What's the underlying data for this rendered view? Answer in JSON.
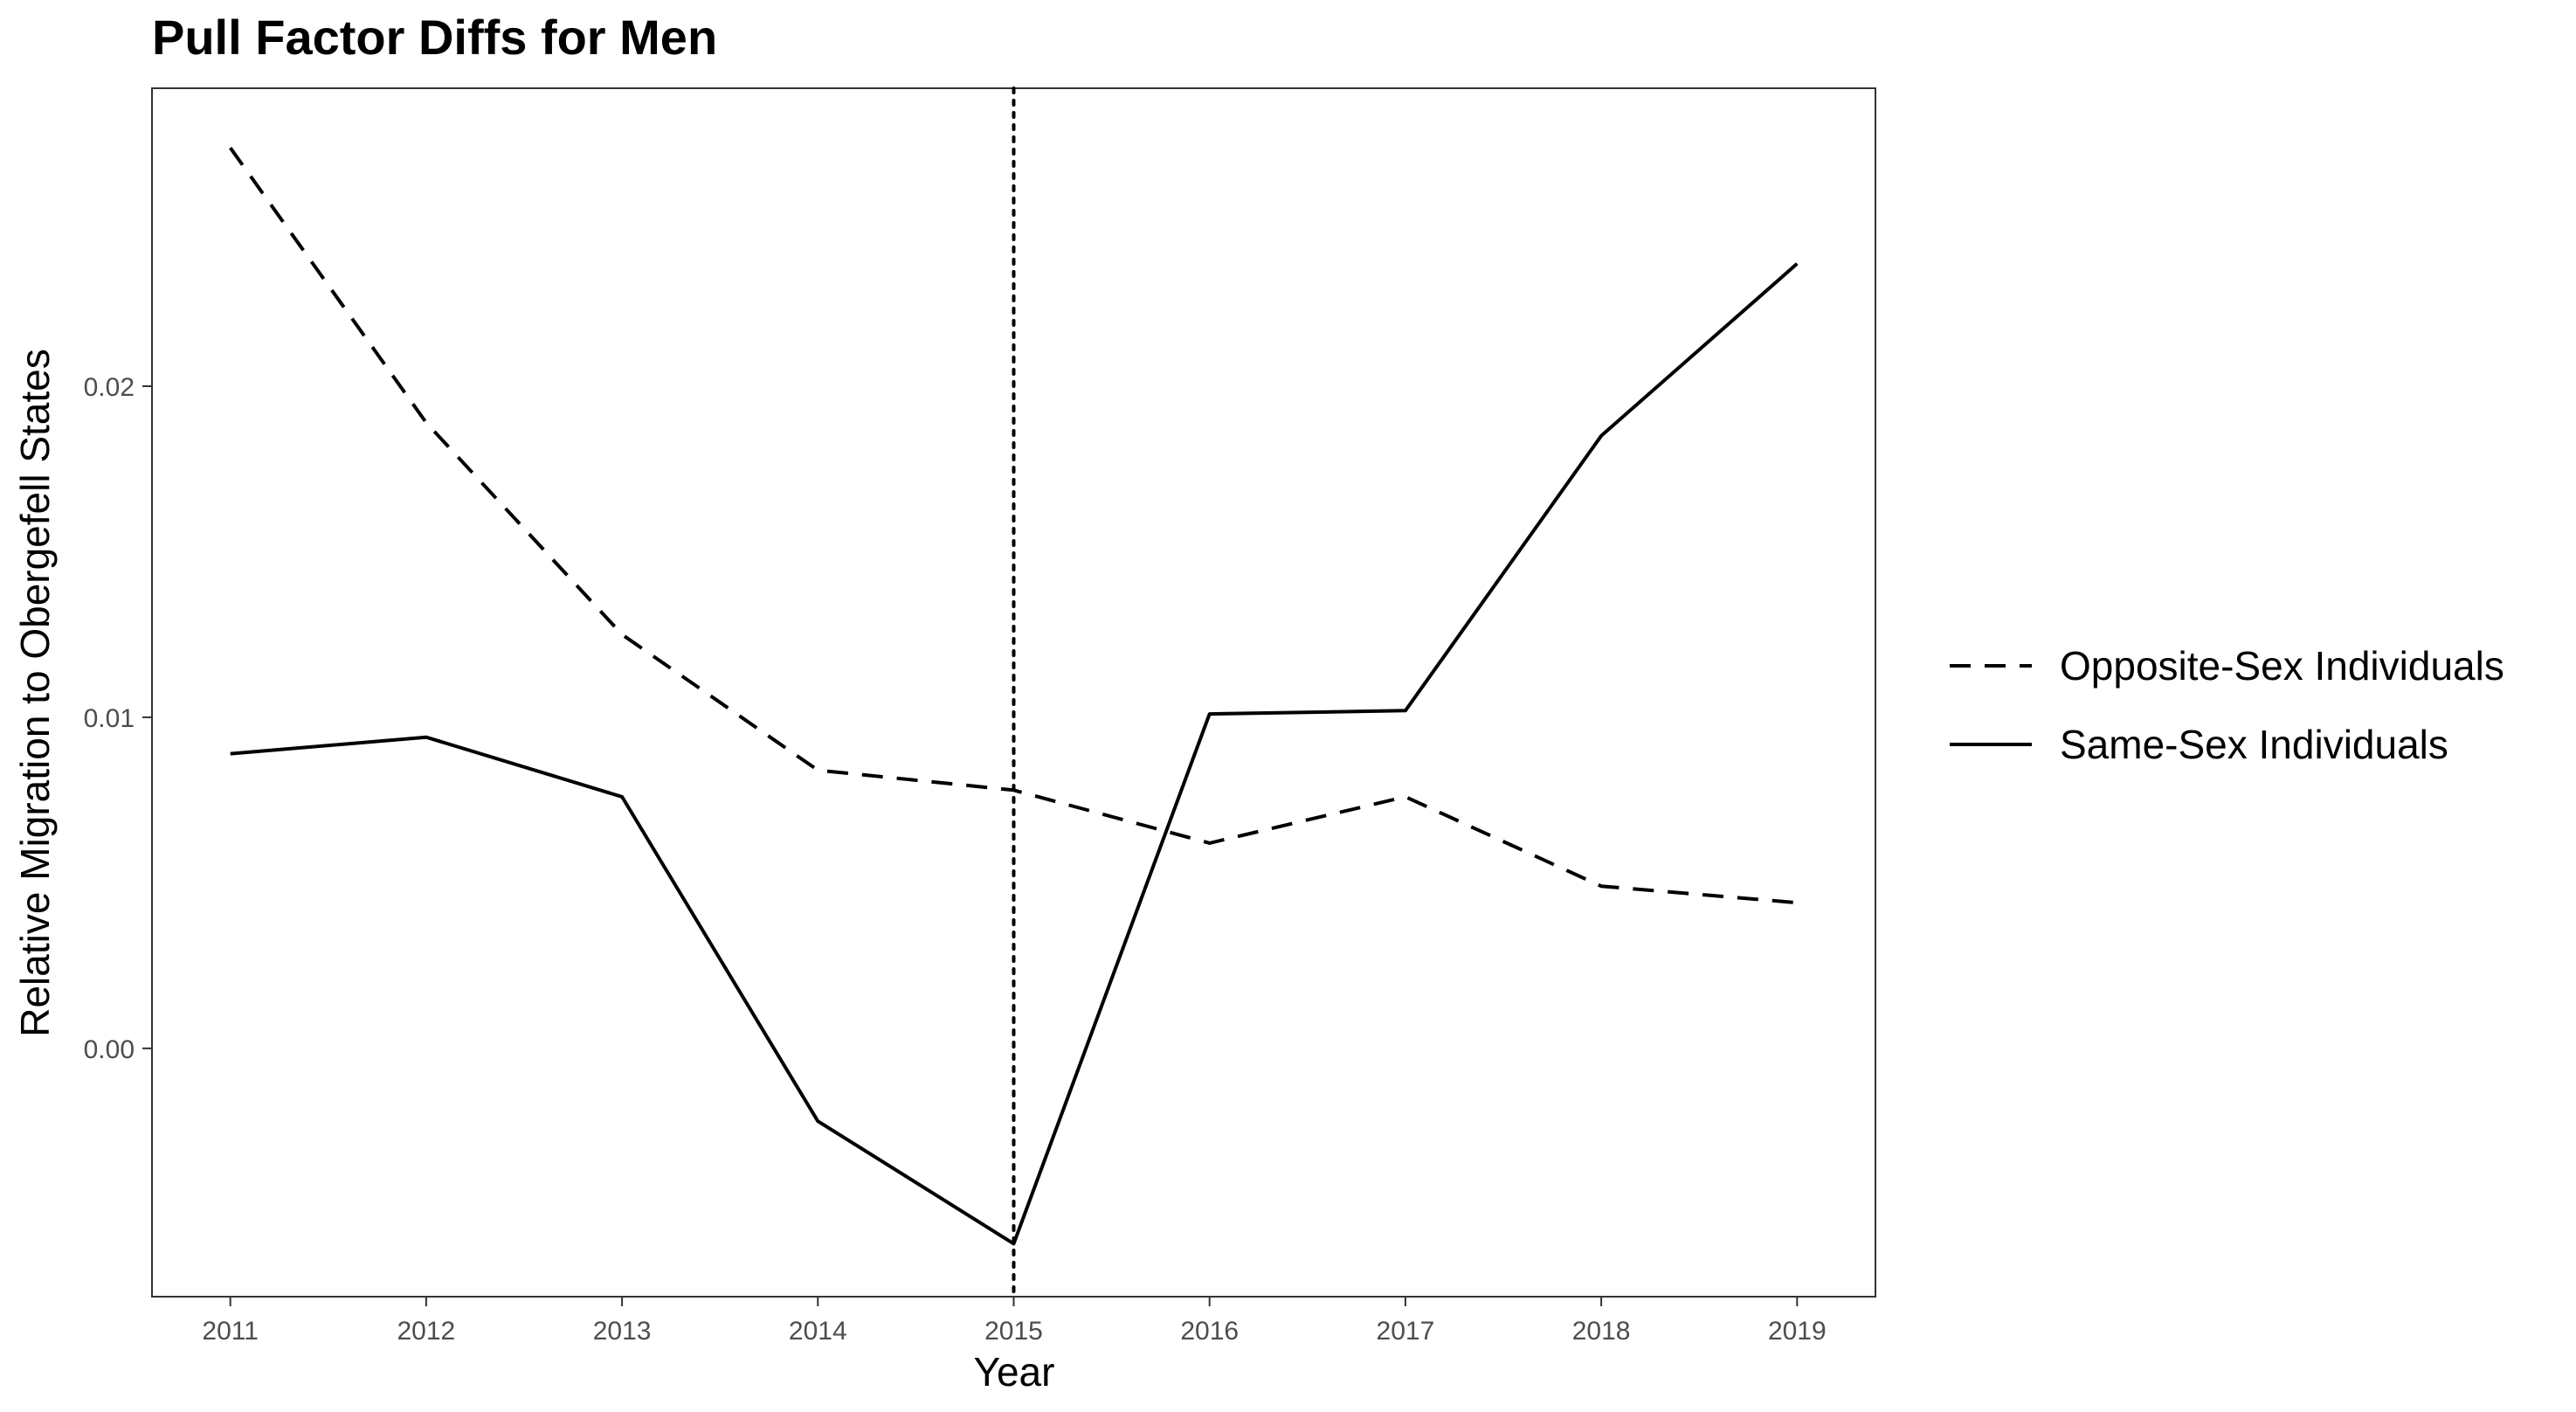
{
  "chart_data": {
    "type": "line",
    "title": "Pull Factor Diffs for Men",
    "xlabel": "Year",
    "ylabel": "Relative Migration to Obergefell States",
    "x": [
      2011,
      2012,
      2013,
      2014,
      2015,
      2016,
      2017,
      2018,
      2019
    ],
    "xlim": [
      2010.6,
      2019.4
    ],
    "ylim": [
      -0.0075,
      0.029
    ],
    "x_ticks": [
      "2011",
      "2012",
      "2013",
      "2014",
      "2015",
      "2016",
      "2017",
      "2018",
      "2019"
    ],
    "y_ticks": [
      {
        "value": 0.0,
        "label": "0.00"
      },
      {
        "value": 0.01,
        "label": "0.01"
      },
      {
        "value": 0.02,
        "label": "0.02"
      }
    ],
    "grid": false,
    "legend_position": "right",
    "reference_line": {
      "x": 2015,
      "style": "dotted"
    },
    "series": [
      {
        "name": "Opposite-Sex Individuals",
        "line_style": "dashed",
        "values": [
          0.0272,
          0.0189,
          0.0125,
          0.0084,
          0.0078,
          0.0062,
          0.0076,
          0.0049,
          0.0044
        ]
      },
      {
        "name": "Same-Sex Individuals",
        "line_style": "solid",
        "values": [
          0.0089,
          0.0094,
          0.0076,
          -0.0022,
          -0.0059,
          0.0101,
          0.0102,
          0.0185,
          0.0237
        ]
      }
    ],
    "colors": {
      "line": "#000000",
      "axis_text": "#4d4d4d",
      "panel_border": "#333333"
    }
  }
}
